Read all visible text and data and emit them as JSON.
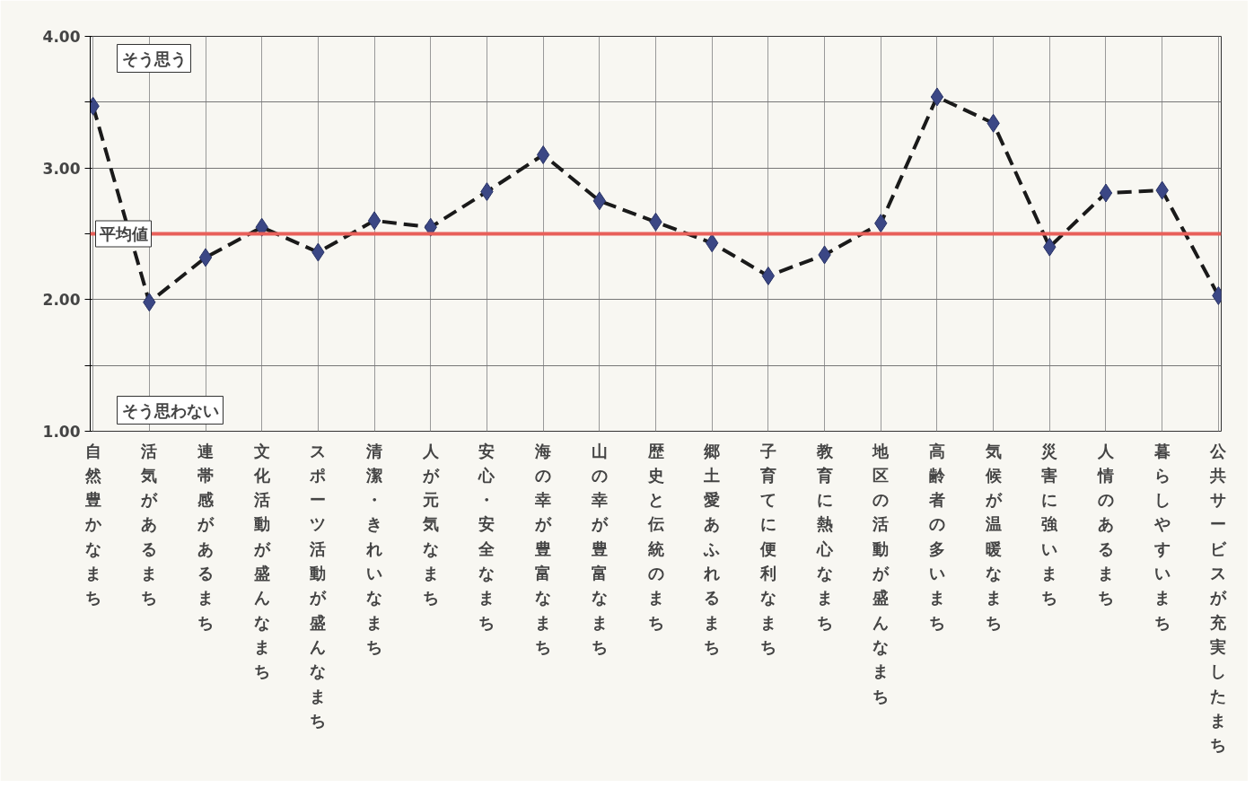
{
  "chart_data": {
    "type": "line",
    "categories": [
      "自然豊かなまち",
      "活気があるまち",
      "連帯感があるまち",
      "文化活動が盛んなまち",
      "スポーツ活動が盛んなまち",
      "清潔・きれいなまち",
      "人が元気なまち",
      "安心・安全なまち",
      "海の幸が豊富なまち",
      "山の幸が豊富なまち",
      "歴史と伝統のまち",
      "郷土愛あふれるまち",
      "子育てに便利なまち",
      "教育に熱心なまち",
      "地区の活動が盛んなまち",
      "高齢者の多いまち",
      "気候が温暖なまち",
      "災害に強いまち",
      "人情のあるまち",
      "暮らしやすいまち",
      "公共サービスが充実したまち"
    ],
    "series": [
      {
        "color": "#1a1a1a",
        "values": [
          3.47,
          1.98,
          2.32,
          2.55,
          2.36,
          2.6,
          2.55,
          2.82,
          3.1,
          2.75,
          2.59,
          2.43,
          2.18,
          2.34,
          2.58,
          3.54,
          3.34,
          2.4,
          2.81,
          2.83,
          2.03
        ]
      }
    ],
    "ylim": [
      1,
      4
    ],
    "yticks": [
      {
        "value": 1,
        "label": "1.00"
      },
      {
        "value": 1.5,
        "label": null
      },
      {
        "value": 2,
        "label": "2.00"
      },
      {
        "value": 2.5,
        "label": null
      },
      {
        "value": 3,
        "label": "3.00"
      },
      {
        "value": 3.5,
        "label": null
      },
      {
        "value": 4,
        "label": "4.00"
      }
    ],
    "ref_lines": [
      {
        "axis": "y",
        "value": 2.5,
        "label": "平均値",
        "color": "#e8605a"
      }
    ],
    "annotations": [
      "そう思う",
      "そう思わない"
    ],
    "marker": "diamond",
    "line_style": "dashed",
    "grid": true
  }
}
